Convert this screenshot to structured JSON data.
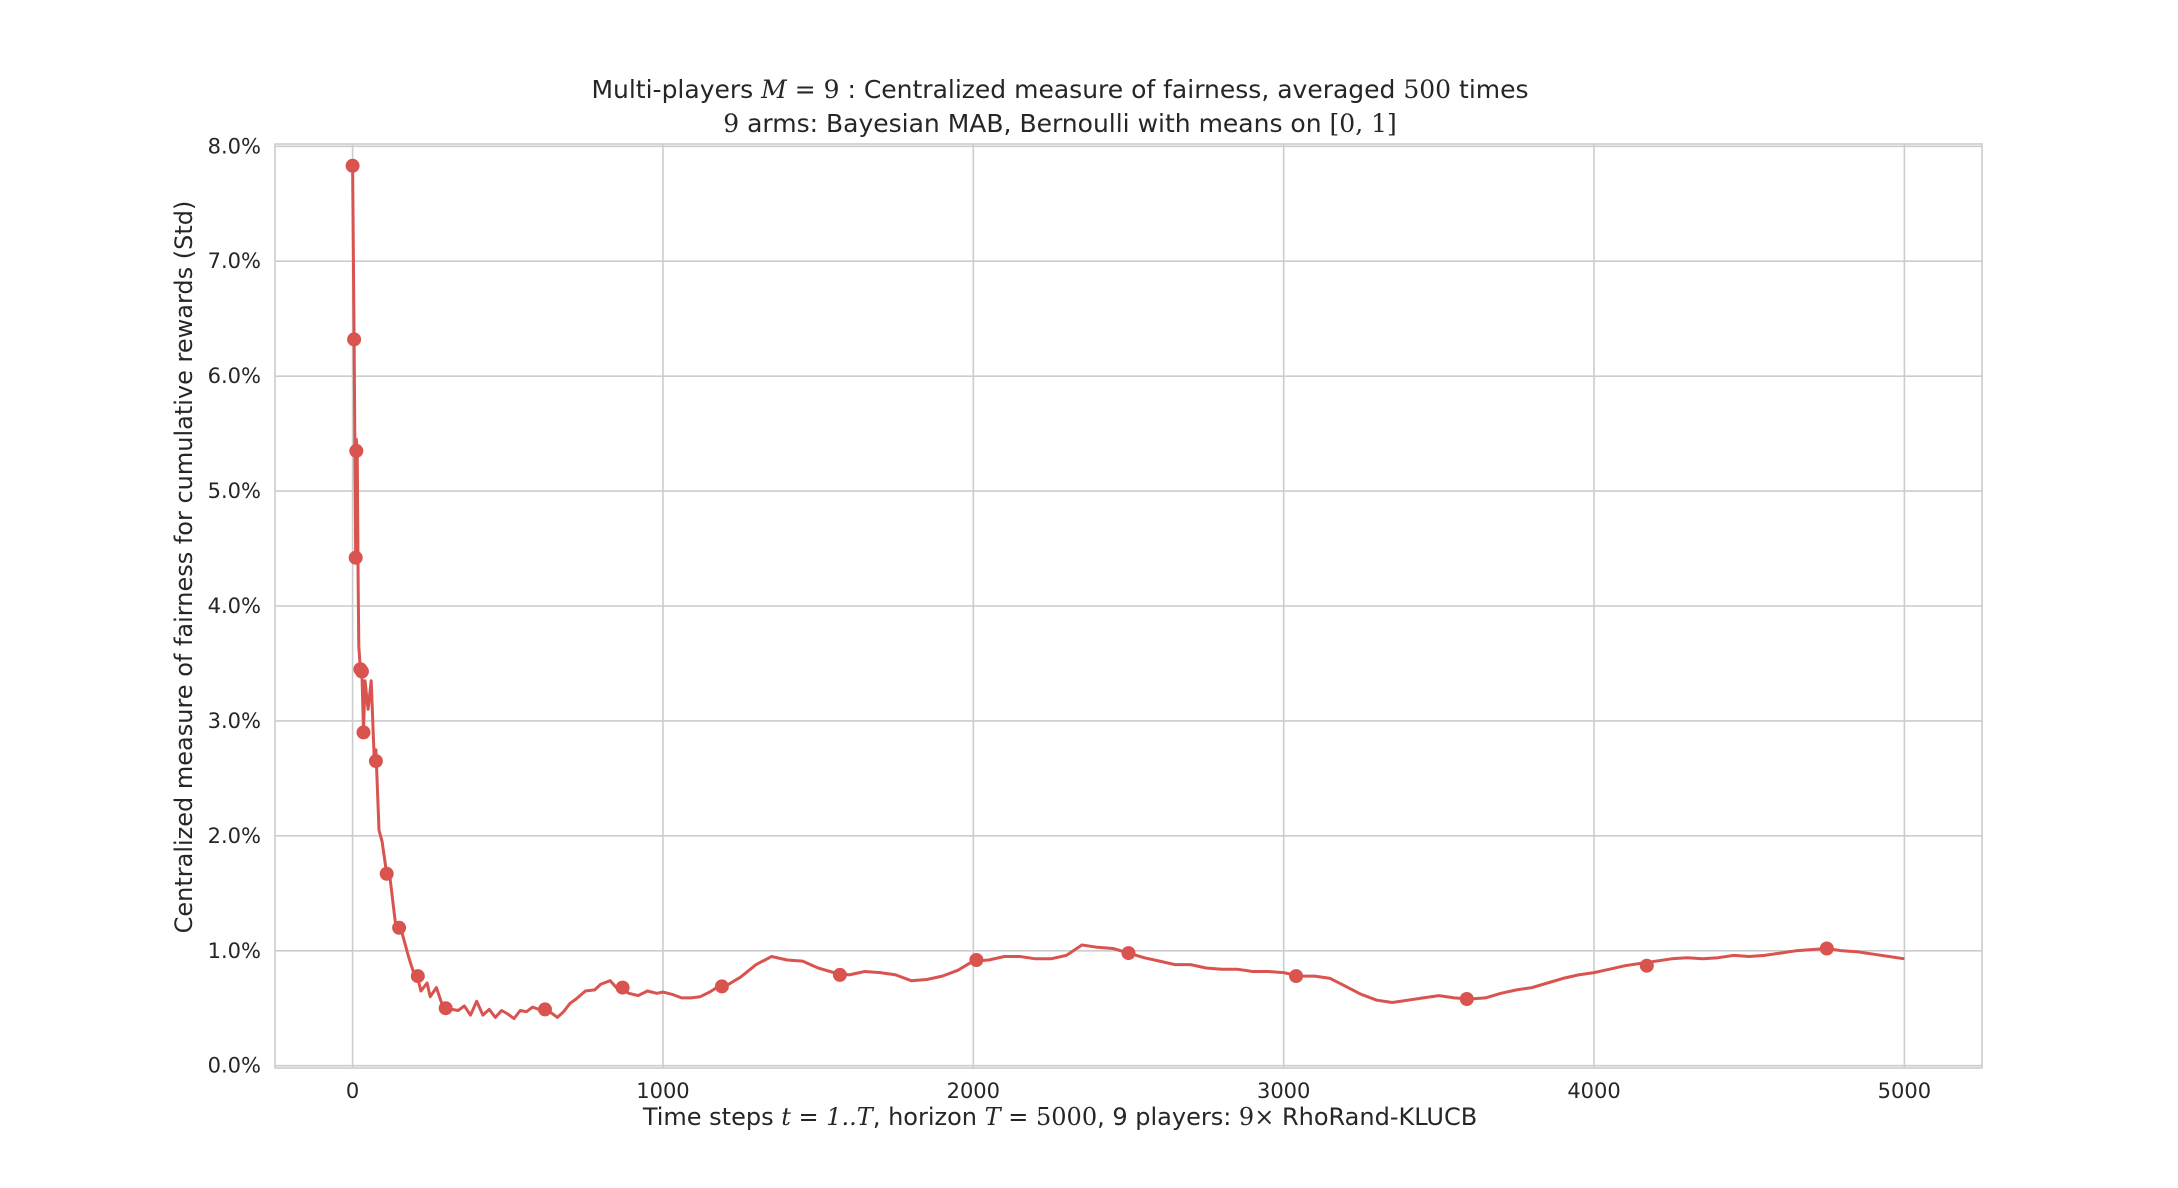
{
  "chart_data": {
    "type": "line",
    "title": "Multi-players M=9 : Centralized measure of fairness, averaged 500 times",
    "title_parts": [
      "Multi-players ",
      "M",
      " = ",
      "9",
      " : Centralized measure of fairness, averaged ",
      "500",
      " times"
    ],
    "subtitle": "9 arms: Bayesian MAB, Bernoulli with means on [0,1]",
    "subtitle_parts": [
      "9",
      " arms: Bayesian MAB, Bernoulli with means on ",
      "[0, 1]"
    ],
    "xlabel": "Time steps t=1..T, horizon T=5000, 9 players: 9× RhoRand-KLUCB",
    "xlabel_parts": [
      "Time steps ",
      "t",
      " = ",
      "1..T",
      ", horizon ",
      "T",
      " = ",
      "5000",
      ", 9 players: ",
      "9",
      "×",
      "  RhoRand-KLUCB"
    ],
    "ylabel": "Centralized measure of fairness for cumulative rewards (Std)",
    "xlim": [
      -250,
      5250
    ],
    "ylim": [
      -0.0002,
      0.0802
    ],
    "x_ticks": [
      0,
      1000,
      2000,
      3000,
      4000,
      5000
    ],
    "x_tick_labels": [
      "0",
      "1000",
      "2000",
      "3000",
      "4000",
      "5000"
    ],
    "y_ticks": [
      0,
      0.01,
      0.02,
      0.03,
      0.04,
      0.05,
      0.06,
      0.07,
      0.08
    ],
    "y_tick_labels": [
      "0.0%",
      "1.0%",
      "2.0%",
      "3.0%",
      "4.0%",
      "5.0%",
      "6.0%",
      "7.0%",
      "8.0%"
    ],
    "grid": true,
    "series": [
      {
        "color": "#d9534f",
        "x": [
          0,
          5,
          10,
          12,
          15,
          18,
          20,
          25,
          30,
          35,
          40,
          50,
          60,
          70,
          75,
          85,
          95,
          110,
          120,
          140,
          150,
          160,
          180,
          200,
          210,
          220,
          240,
          250,
          270,
          290,
          300,
          320,
          340,
          360,
          380,
          400,
          420,
          440,
          460,
          480,
          500,
          520,
          540,
          560,
          580,
          600,
          620,
          640,
          660,
          680,
          700,
          720,
          750,
          780,
          800,
          830,
          850,
          870,
          890,
          920,
          950,
          980,
          1000,
          1030,
          1060,
          1090,
          1120,
          1150,
          1180,
          1200,
          1250,
          1300,
          1350,
          1400,
          1450,
          1500,
          1550,
          1600,
          1650,
          1700,
          1750,
          1800,
          1850,
          1900,
          1950,
          2000,
          2050,
          2100,
          2150,
          2200,
          2250,
          2300,
          2350,
          2400,
          2450,
          2500,
          2550,
          2600,
          2650,
          2700,
          2750,
          2800,
          2850,
          2900,
          2950,
          3000,
          3050,
          3100,
          3150,
          3200,
          3250,
          3300,
          3350,
          3400,
          3450,
          3500,
          3550,
          3600,
          3650,
          3700,
          3750,
          3800,
          3850,
          3900,
          3950,
          4000,
          4050,
          4100,
          4150,
          4200,
          4250,
          4300,
          4350,
          4400,
          4450,
          4500,
          4550,
          4600,
          4650,
          4700,
          4750,
          4800,
          4850,
          4900,
          4950,
          5000
        ],
        "values": [
          0.0783,
          0.0632,
          0.0442,
          0.0545,
          0.0535,
          0.0415,
          0.0365,
          0.0345,
          0.0343,
          0.029,
          0.0335,
          0.031,
          0.0335,
          0.0265,
          0.0275,
          0.0205,
          0.0195,
          0.0167,
          0.0165,
          0.012,
          0.0118,
          0.0115,
          0.0095,
          0.0078,
          0.0076,
          0.0065,
          0.0072,
          0.006,
          0.0068,
          0.0052,
          0.005,
          0.0049,
          0.0048,
          0.0052,
          0.0044,
          0.0056,
          0.0044,
          0.0049,
          0.0042,
          0.0048,
          0.0045,
          0.0041,
          0.0048,
          0.0047,
          0.0051,
          0.0049,
          0.0047,
          0.0046,
          0.0042,
          0.0047,
          0.0054,
          0.0058,
          0.0065,
          0.0066,
          0.0071,
          0.0074,
          0.0068,
          0.0066,
          0.0063,
          0.0061,
          0.0065,
          0.0063,
          0.0064,
          0.0062,
          0.0059,
          0.0059,
          0.006,
          0.0064,
          0.0069,
          0.0069,
          0.0077,
          0.0088,
          0.0095,
          0.0092,
          0.0091,
          0.0085,
          0.0081,
          0.0079,
          0.0082,
          0.0081,
          0.0079,
          0.0074,
          0.0075,
          0.0078,
          0.0083,
          0.0091,
          0.0092,
          0.0095,
          0.0095,
          0.0093,
          0.0093,
          0.0096,
          0.0105,
          0.0103,
          0.0102,
          0.0098,
          0.0094,
          0.0091,
          0.0088,
          0.0088,
          0.0085,
          0.0084,
          0.0084,
          0.0082,
          0.0082,
          0.0081,
          0.0078,
          0.0078,
          0.0076,
          0.0069,
          0.0062,
          0.0057,
          0.0055,
          0.0057,
          0.0059,
          0.0061,
          0.0059,
          0.0058,
          0.0059,
          0.0063,
          0.0066,
          0.0068,
          0.0072,
          0.0076,
          0.0079,
          0.0081,
          0.0084,
          0.0087,
          0.0089,
          0.0091,
          0.0093,
          0.0094,
          0.0093,
          0.0094,
          0.0096,
          0.0095,
          0.0096,
          0.0098,
          0.01,
          0.0101,
          0.0102,
          0.01,
          0.0099,
          0.0097,
          0.0095,
          0.0093
        ]
      }
    ],
    "markers": {
      "x": [
        0,
        5,
        10,
        12,
        25,
        30,
        35,
        75,
        110,
        150,
        210,
        300,
        620,
        870,
        1190,
        1570,
        2010,
        2500,
        3040,
        3590,
        4170,
        4750
      ],
      "values": [
        0.0783,
        0.0632,
        0.0442,
        0.0535,
        0.0345,
        0.0343,
        0.029,
        0.0265,
        0.0167,
        0.012,
        0.0078,
        0.005,
        0.0049,
        0.0068,
        0.0069,
        0.0079,
        0.0092,
        0.0098,
        0.0078,
        0.0058,
        0.0087,
        0.0102
      ]
    }
  }
}
